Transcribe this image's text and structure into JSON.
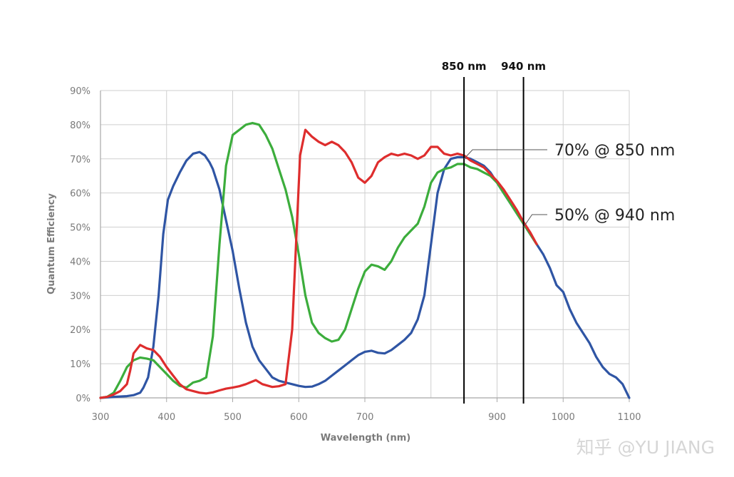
{
  "chart_data": {
    "type": "line",
    "title": "",
    "xlabel": "Wavelength (nm)",
    "ylabel": "Quantum Efficiency",
    "xlim": [
      300,
      1100
    ],
    "ylim": [
      0,
      90
    ],
    "x_ticks": [
      300,
      400,
      500,
      600,
      700,
      900,
      1000,
      1100
    ],
    "x_tick_labels": [
      "300",
      "400",
      "500",
      "600",
      "700",
      "900",
      "1000",
      "1100"
    ],
    "x_grid": [
      300,
      400,
      500,
      600,
      700,
      800,
      900,
      1000,
      1100
    ],
    "y_ticks": [
      0,
      10,
      20,
      30,
      40,
      50,
      60,
      70,
      80,
      90
    ],
    "y_tick_labels": [
      "0%",
      "10%",
      "20%",
      "30%",
      "40%",
      "50%",
      "60%",
      "70%",
      "80%",
      "90%"
    ],
    "grid": true,
    "series": [
      {
        "color": "#2f55a4",
        "points": [
          [
            300,
            0
          ],
          [
            320,
            0.3
          ],
          [
            340,
            0.5
          ],
          [
            350,
            0.8
          ],
          [
            360,
            1.5
          ],
          [
            365,
            3
          ],
          [
            372,
            6
          ],
          [
            380,
            15
          ],
          [
            388,
            30
          ],
          [
            395,
            48
          ],
          [
            402,
            58
          ],
          [
            410,
            62
          ],
          [
            420,
            66
          ],
          [
            430,
            69.5
          ],
          [
            440,
            71.5
          ],
          [
            450,
            72
          ],
          [
            458,
            71
          ],
          [
            465,
            69
          ],
          [
            470,
            67
          ],
          [
            480,
            61
          ],
          [
            490,
            52
          ],
          [
            500,
            43
          ],
          [
            510,
            32
          ],
          [
            520,
            22
          ],
          [
            530,
            15
          ],
          [
            540,
            11
          ],
          [
            550,
            8.5
          ],
          [
            560,
            6
          ],
          [
            570,
            5
          ],
          [
            580,
            4.5
          ],
          [
            590,
            4
          ],
          [
            600,
            3.5
          ],
          [
            610,
            3.2
          ],
          [
            620,
            3.3
          ],
          [
            630,
            4
          ],
          [
            640,
            5
          ],
          [
            650,
            6.5
          ],
          [
            660,
            8
          ],
          [
            670,
            9.5
          ],
          [
            680,
            11
          ],
          [
            690,
            12.5
          ],
          [
            700,
            13.5
          ],
          [
            710,
            13.8
          ],
          [
            720,
            13.2
          ],
          [
            730,
            13
          ],
          [
            740,
            14
          ],
          [
            750,
            15.5
          ],
          [
            760,
            17
          ],
          [
            770,
            19
          ],
          [
            780,
            23
          ],
          [
            790,
            30
          ],
          [
            800,
            45
          ],
          [
            810,
            60
          ],
          [
            820,
            67
          ],
          [
            830,
            70
          ],
          [
            840,
            70.5
          ],
          [
            850,
            70.5
          ],
          [
            860,
            70
          ],
          [
            870,
            69
          ],
          [
            880,
            68
          ],
          [
            890,
            66
          ],
          [
            900,
            63
          ],
          [
            910,
            60
          ],
          [
            920,
            57
          ],
          [
            930,
            54
          ],
          [
            940,
            51
          ],
          [
            950,
            48
          ],
          [
            960,
            45
          ],
          [
            970,
            42
          ],
          [
            980,
            38
          ],
          [
            990,
            33
          ],
          [
            1000,
            31
          ],
          [
            1010,
            26
          ],
          [
            1020,
            22
          ],
          [
            1030,
            19
          ],
          [
            1040,
            16
          ],
          [
            1050,
            12
          ],
          [
            1060,
            9
          ],
          [
            1070,
            7
          ],
          [
            1080,
            6
          ],
          [
            1090,
            4
          ],
          [
            1100,
            0
          ]
        ]
      },
      {
        "color": "#3cad3c",
        "points": [
          [
            300,
            0
          ],
          [
            310,
            0.3
          ],
          [
            320,
            1.5
          ],
          [
            330,
            5
          ],
          [
            340,
            9
          ],
          [
            350,
            11
          ],
          [
            360,
            11.8
          ],
          [
            370,
            11.5
          ],
          [
            380,
            11
          ],
          [
            390,
            9
          ],
          [
            400,
            7
          ],
          [
            410,
            5
          ],
          [
            420,
            3.5
          ],
          [
            430,
            3
          ],
          [
            440,
            4.5
          ],
          [
            450,
            5
          ],
          [
            460,
            6
          ],
          [
            470,
            18
          ],
          [
            480,
            45
          ],
          [
            490,
            68
          ],
          [
            500,
            77
          ],
          [
            510,
            78.5
          ],
          [
            520,
            80
          ],
          [
            530,
            80.5
          ],
          [
            540,
            80
          ],
          [
            550,
            77
          ],
          [
            560,
            73
          ],
          [
            570,
            67
          ],
          [
            580,
            61
          ],
          [
            590,
            53
          ],
          [
            600,
            42
          ],
          [
            610,
            30
          ],
          [
            620,
            22
          ],
          [
            630,
            19
          ],
          [
            640,
            17.5
          ],
          [
            650,
            16.5
          ],
          [
            660,
            17
          ],
          [
            670,
            20
          ],
          [
            680,
            26
          ],
          [
            690,
            32
          ],
          [
            700,
            37
          ],
          [
            710,
            39
          ],
          [
            720,
            38.5
          ],
          [
            730,
            37.5
          ],
          [
            740,
            40
          ],
          [
            750,
            44
          ],
          [
            760,
            47
          ],
          [
            770,
            49
          ],
          [
            780,
            51
          ],
          [
            790,
            56
          ],
          [
            800,
            63
          ],
          [
            810,
            66
          ],
          [
            820,
            67
          ],
          [
            830,
            67.5
          ],
          [
            840,
            68.5
          ],
          [
            850,
            68.5
          ],
          [
            860,
            67.5
          ],
          [
            870,
            67
          ],
          [
            880,
            66
          ],
          [
            890,
            65
          ],
          [
            900,
            63
          ],
          [
            910,
            60
          ],
          [
            920,
            57
          ],
          [
            930,
            54
          ],
          [
            940,
            51
          ],
          [
            950,
            48
          ],
          [
            960,
            45
          ]
        ]
      },
      {
        "color": "#de2d2d",
        "points": [
          [
            300,
            0
          ],
          [
            310,
            0.3
          ],
          [
            320,
            1
          ],
          [
            330,
            2
          ],
          [
            340,
            4
          ],
          [
            345,
            8
          ],
          [
            350,
            13
          ],
          [
            360,
            15.5
          ],
          [
            370,
            14.5
          ],
          [
            380,
            14
          ],
          [
            390,
            12
          ],
          [
            400,
            9
          ],
          [
            410,
            6.5
          ],
          [
            420,
            4
          ],
          [
            430,
            2.5
          ],
          [
            440,
            2
          ],
          [
            450,
            1.5
          ],
          [
            460,
            1.3
          ],
          [
            470,
            1.6
          ],
          [
            480,
            2.2
          ],
          [
            490,
            2.7
          ],
          [
            500,
            3
          ],
          [
            510,
            3.4
          ],
          [
            520,
            4
          ],
          [
            530,
            4.8
          ],
          [
            535,
            5.2
          ],
          [
            545,
            4
          ],
          [
            560,
            3.2
          ],
          [
            570,
            3.4
          ],
          [
            580,
            4
          ],
          [
            590,
            20
          ],
          [
            597,
            50
          ],
          [
            602,
            71
          ],
          [
            610,
            78.5
          ],
          [
            620,
            76.5
          ],
          [
            630,
            75
          ],
          [
            640,
            74
          ],
          [
            650,
            75
          ],
          [
            660,
            74
          ],
          [
            670,
            72
          ],
          [
            680,
            69
          ],
          [
            690,
            64.5
          ],
          [
            700,
            63
          ],
          [
            710,
            65
          ],
          [
            720,
            69
          ],
          [
            730,
            70.5
          ],
          [
            740,
            71.5
          ],
          [
            750,
            71
          ],
          [
            760,
            71.5
          ],
          [
            770,
            71
          ],
          [
            780,
            70
          ],
          [
            790,
            71
          ],
          [
            800,
            73.5
          ],
          [
            810,
            73.5
          ],
          [
            820,
            71.5
          ],
          [
            830,
            71
          ],
          [
            840,
            71.5
          ],
          [
            850,
            71
          ],
          [
            860,
            69.5
          ],
          [
            870,
            68.5
          ],
          [
            880,
            67.5
          ],
          [
            890,
            65.5
          ],
          [
            900,
            63.5
          ],
          [
            910,
            61
          ],
          [
            920,
            58
          ],
          [
            930,
            55
          ],
          [
            940,
            51.5
          ],
          [
            950,
            48.5
          ],
          [
            960,
            45
          ]
        ]
      }
    ],
    "markers": [
      {
        "x": 850,
        "label": "850 nm"
      },
      {
        "x": 940,
        "label": "940 nm"
      }
    ],
    "annotations": [
      {
        "x": 850,
        "y": 70,
        "text": "70% @ 850 nm"
      },
      {
        "x": 940,
        "y": 50,
        "text": "50% @ 940 nm"
      }
    ]
  },
  "watermark": "知乎 @YU JIANG",
  "colors": {
    "grid": "#cfcfcf",
    "axis": "#a8a8a8",
    "marker_line": "#000000",
    "callout_line": "#555555"
  }
}
